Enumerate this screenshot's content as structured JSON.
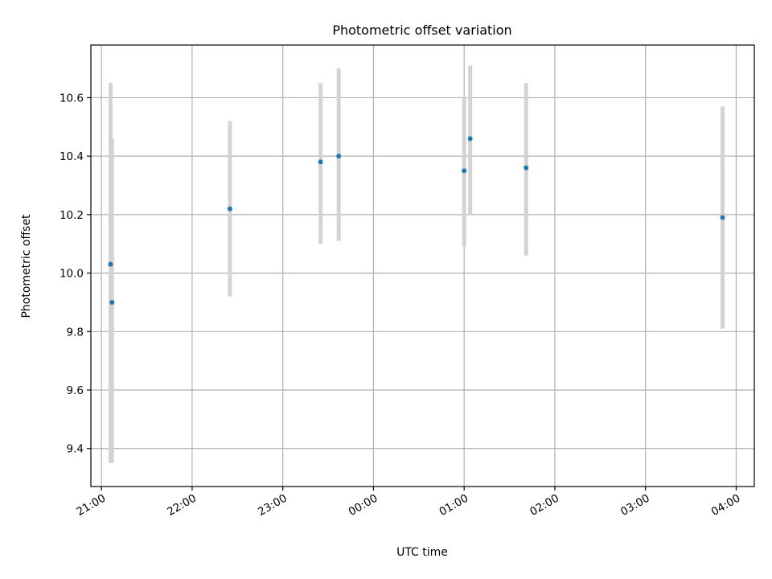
{
  "chart_data": {
    "type": "scatter",
    "title": "Photometric offset variation",
    "xlabel": "UTC time",
    "ylabel": "Photometric offset",
    "xlim": [
      "20:53",
      "04:12"
    ],
    "ylim": [
      9.27,
      10.78
    ],
    "grid": true,
    "x_ticks": [
      "21:00",
      "22:00",
      "23:00",
      "00:00",
      "01:00",
      "02:00",
      "03:00",
      "04:00"
    ],
    "y_ticks": [
      9.4,
      9.6,
      9.8,
      10.0,
      10.2,
      10.4,
      10.6
    ],
    "colors": {
      "points": "#1f77b4",
      "errorbars": "#d3d3d3",
      "grid": "#b0b0b0"
    },
    "series": [
      {
        "points": [
          {
            "x": "21:06",
            "y": 10.03,
            "ylow": 9.35,
            "yhigh": 10.65
          },
          {
            "x": "21:07",
            "y": 9.9,
            "ylow": 9.35,
            "yhigh": 10.46
          },
          {
            "x": "22:25",
            "y": 10.22,
            "ylow": 9.92,
            "yhigh": 10.52
          },
          {
            "x": "23:25",
            "y": 10.38,
            "ylow": 10.1,
            "yhigh": 10.65
          },
          {
            "x": "23:37",
            "y": 10.4,
            "ylow": 10.11,
            "yhigh": 10.7
          },
          {
            "x": "01:00",
            "y": 10.35,
            "ylow": 10.09,
            "yhigh": 10.6
          },
          {
            "x": "01:04",
            "y": 10.46,
            "ylow": 10.2,
            "yhigh": 10.71
          },
          {
            "x": "01:41",
            "y": 10.36,
            "ylow": 10.06,
            "yhigh": 10.65
          },
          {
            "x": "03:51",
            "y": 10.19,
            "ylow": 9.81,
            "yhigh": 10.57
          }
        ]
      }
    ]
  }
}
